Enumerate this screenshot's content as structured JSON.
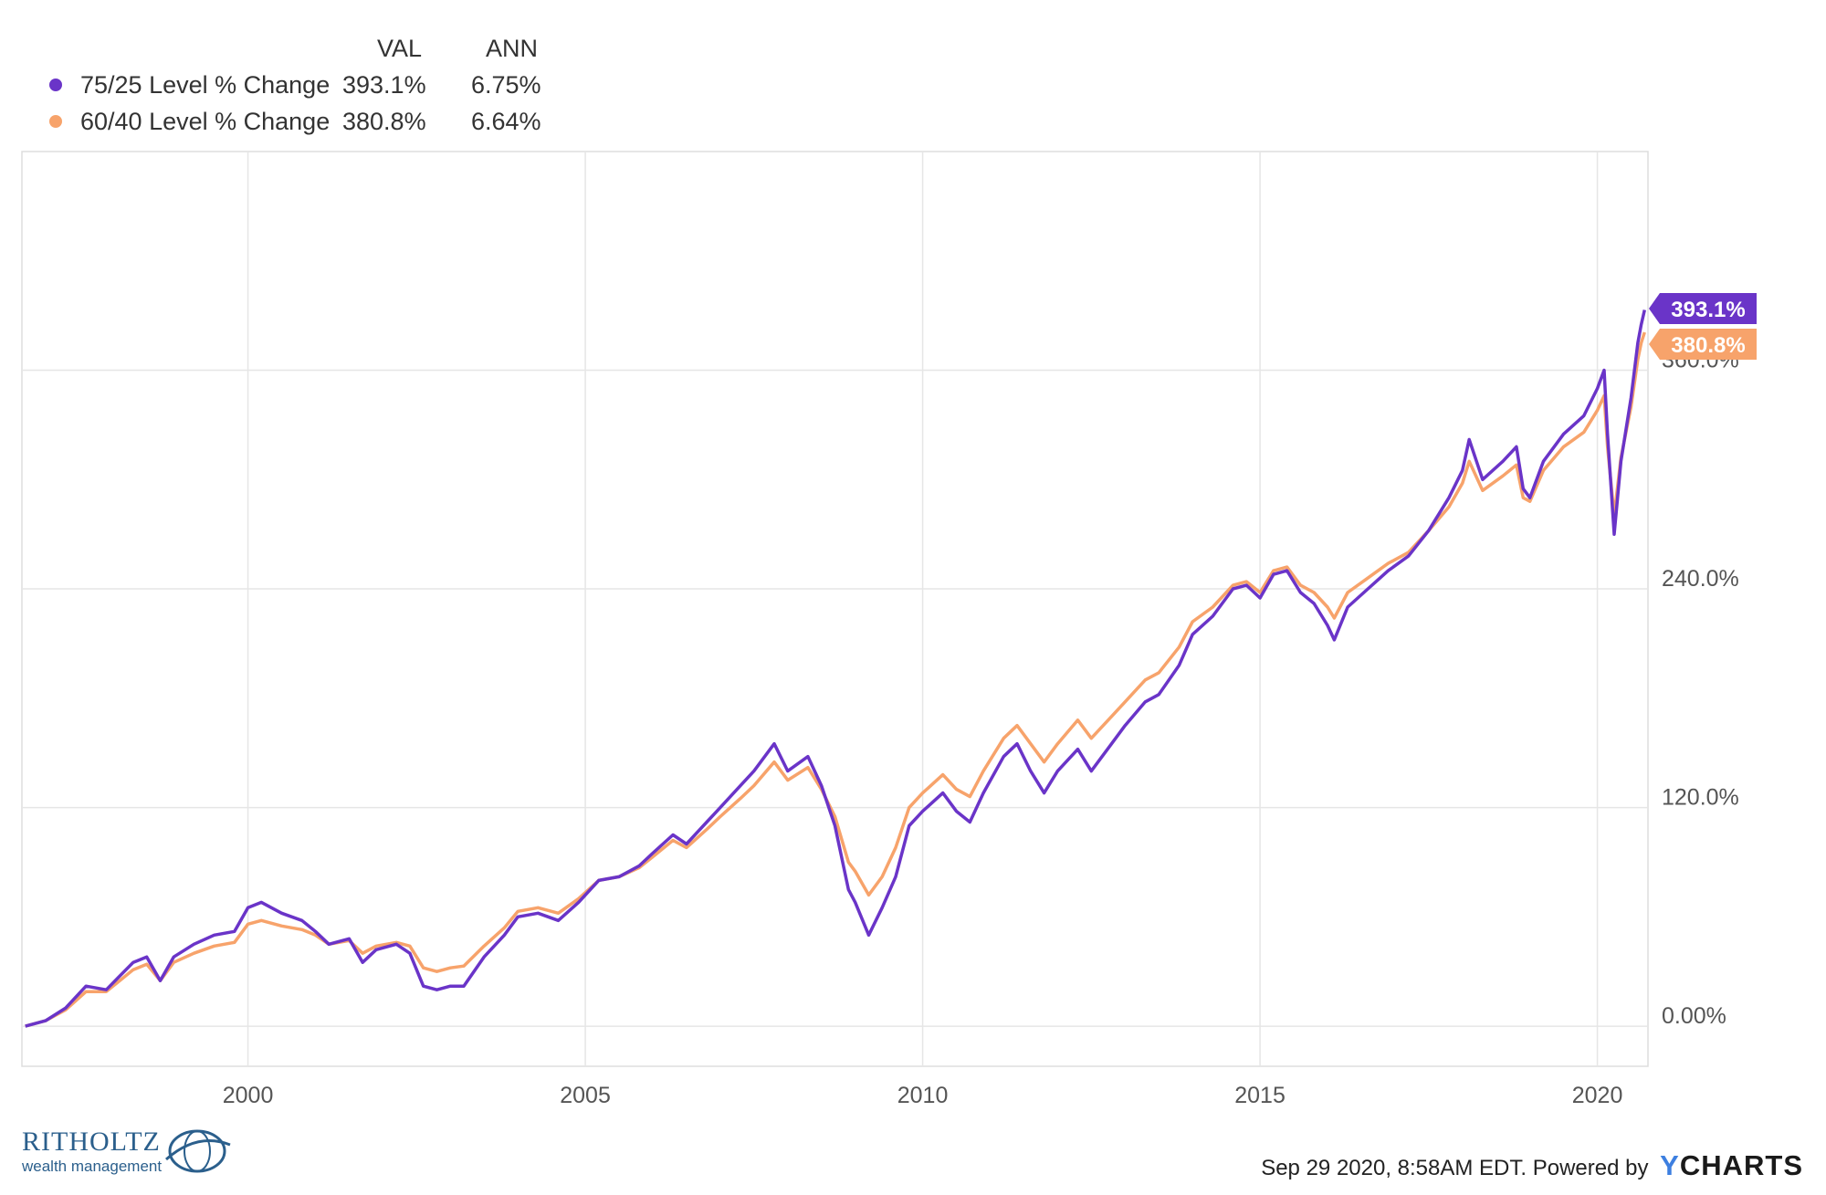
{
  "legend": {
    "col_val": "VAL",
    "col_ann": "ANN",
    "rows": [
      {
        "name": "75/25 Level % Change",
        "val": "393.1%",
        "ann": "6.75%"
      },
      {
        "name": "60/40 Level % Change",
        "val": "380.8%",
        "ann": "6.64%"
      }
    ]
  },
  "footer": {
    "timestamp": "Sep 29 2020, 8:58AM EDT. Powered by",
    "brand_y": "Y",
    "brand_rest": "CHARTS"
  },
  "logo": {
    "name": "RITHOLTZ",
    "sub": "wealth management"
  },
  "colors": {
    "series_75_25": "#6a34c8",
    "series_60_40": "#f7a36b",
    "grid": "#e6e6e6",
    "tick_text": "#555555"
  },
  "chart_data": {
    "type": "line",
    "title": "",
    "xlabel": "",
    "ylabel": "",
    "x_ticks": [
      "2000",
      "2005",
      "2010",
      "2015",
      "2020"
    ],
    "y_ticks": [
      "0.00%",
      "120.0%",
      "240.0%",
      "360.0%"
    ],
    "xlim": [
      1996.65,
      2020.75
    ],
    "ylim": [
      -22,
      480
    ],
    "grid": true,
    "legend_position": "top-left",
    "end_labels": [
      "393.1%",
      "380.8%"
    ],
    "series": [
      {
        "name": "75/25 Level % Change",
        "color": "#6a34c8",
        "points": [
          [
            1996.7,
            0
          ],
          [
            1997.0,
            3
          ],
          [
            1997.3,
            10
          ],
          [
            1997.6,
            22
          ],
          [
            1997.9,
            20
          ],
          [
            1998.3,
            35
          ],
          [
            1998.5,
            38
          ],
          [
            1998.7,
            25
          ],
          [
            1998.9,
            38
          ],
          [
            1999.2,
            45
          ],
          [
            1999.5,
            50
          ],
          [
            1999.8,
            52
          ],
          [
            2000.0,
            65
          ],
          [
            2000.2,
            68
          ],
          [
            2000.5,
            62
          ],
          [
            2000.8,
            58
          ],
          [
            2001.0,
            52
          ],
          [
            2001.2,
            45
          ],
          [
            2001.5,
            48
          ],
          [
            2001.7,
            35
          ],
          [
            2001.9,
            42
          ],
          [
            2002.2,
            45
          ],
          [
            2002.4,
            40
          ],
          [
            2002.6,
            22
          ],
          [
            2002.8,
            20
          ],
          [
            2003.0,
            22
          ],
          [
            2003.2,
            22
          ],
          [
            2003.5,
            38
          ],
          [
            2003.8,
            50
          ],
          [
            2004.0,
            60
          ],
          [
            2004.3,
            62
          ],
          [
            2004.6,
            58
          ],
          [
            2004.9,
            68
          ],
          [
            2005.2,
            80
          ],
          [
            2005.5,
            82
          ],
          [
            2005.8,
            88
          ],
          [
            2006.0,
            95
          ],
          [
            2006.3,
            105
          ],
          [
            2006.5,
            100
          ],
          [
            2006.8,
            112
          ],
          [
            2007.0,
            120
          ],
          [
            2007.3,
            132
          ],
          [
            2007.5,
            140
          ],
          [
            2007.8,
            155
          ],
          [
            2008.0,
            140
          ],
          [
            2008.3,
            148
          ],
          [
            2008.5,
            132
          ],
          [
            2008.7,
            110
          ],
          [
            2008.9,
            75
          ],
          [
            2009.0,
            68
          ],
          [
            2009.2,
            50
          ],
          [
            2009.4,
            65
          ],
          [
            2009.6,
            82
          ],
          [
            2009.8,
            110
          ],
          [
            2010.0,
            118
          ],
          [
            2010.3,
            128
          ],
          [
            2010.5,
            118
          ],
          [
            2010.7,
            112
          ],
          [
            2010.9,
            128
          ],
          [
            2011.2,
            148
          ],
          [
            2011.4,
            155
          ],
          [
            2011.6,
            140
          ],
          [
            2011.8,
            128
          ],
          [
            2012.0,
            140
          ],
          [
            2012.3,
            152
          ],
          [
            2012.5,
            140
          ],
          [
            2012.8,
            155
          ],
          [
            2013.0,
            165
          ],
          [
            2013.3,
            178
          ],
          [
            2013.5,
            182
          ],
          [
            2013.8,
            198
          ],
          [
            2014.0,
            215
          ],
          [
            2014.3,
            225
          ],
          [
            2014.6,
            240
          ],
          [
            2014.8,
            242
          ],
          [
            2015.0,
            235
          ],
          [
            2015.2,
            248
          ],
          [
            2015.4,
            250
          ],
          [
            2015.6,
            238
          ],
          [
            2015.8,
            232
          ],
          [
            2016.0,
            220
          ],
          [
            2016.1,
            212
          ],
          [
            2016.3,
            230
          ],
          [
            2016.6,
            240
          ],
          [
            2016.9,
            250
          ],
          [
            2017.2,
            258
          ],
          [
            2017.5,
            272
          ],
          [
            2017.8,
            290
          ],
          [
            2018.0,
            305
          ],
          [
            2018.1,
            322
          ],
          [
            2018.3,
            300
          ],
          [
            2018.6,
            310
          ],
          [
            2018.8,
            318
          ],
          [
            2018.9,
            295
          ],
          [
            2019.0,
            290
          ],
          [
            2019.2,
            310
          ],
          [
            2019.5,
            325
          ],
          [
            2019.8,
            335
          ],
          [
            2020.0,
            350
          ],
          [
            2020.1,
            360
          ],
          [
            2020.15,
            325
          ],
          [
            2020.25,
            270
          ],
          [
            2020.35,
            310
          ],
          [
            2020.5,
            345
          ],
          [
            2020.6,
            375
          ],
          [
            2020.65,
            385
          ],
          [
            2020.7,
            393.1
          ]
        ]
      },
      {
        "name": "60/40 Level % Change",
        "color": "#f7a36b",
        "points": [
          [
            1996.7,
            0
          ],
          [
            1997.0,
            3
          ],
          [
            1997.3,
            9
          ],
          [
            1997.6,
            19
          ],
          [
            1997.9,
            19
          ],
          [
            1998.3,
            31
          ],
          [
            1998.5,
            34
          ],
          [
            1998.7,
            25
          ],
          [
            1998.9,
            35
          ],
          [
            1999.2,
            40
          ],
          [
            1999.5,
            44
          ],
          [
            1999.8,
            46
          ],
          [
            2000.0,
            56
          ],
          [
            2000.2,
            58
          ],
          [
            2000.5,
            55
          ],
          [
            2000.8,
            53
          ],
          [
            2001.0,
            50
          ],
          [
            2001.2,
            45
          ],
          [
            2001.5,
            47
          ],
          [
            2001.7,
            40
          ],
          [
            2001.9,
            44
          ],
          [
            2002.2,
            46
          ],
          [
            2002.4,
            44
          ],
          [
            2002.6,
            32
          ],
          [
            2002.8,
            30
          ],
          [
            2003.0,
            32
          ],
          [
            2003.2,
            33
          ],
          [
            2003.5,
            44
          ],
          [
            2003.8,
            54
          ],
          [
            2004.0,
            63
          ],
          [
            2004.3,
            65
          ],
          [
            2004.6,
            62
          ],
          [
            2004.9,
            70
          ],
          [
            2005.2,
            80
          ],
          [
            2005.5,
            82
          ],
          [
            2005.8,
            87
          ],
          [
            2006.0,
            93
          ],
          [
            2006.3,
            102
          ],
          [
            2006.5,
            98
          ],
          [
            2006.8,
            108
          ],
          [
            2007.0,
            115
          ],
          [
            2007.3,
            125
          ],
          [
            2007.5,
            132
          ],
          [
            2007.8,
            145
          ],
          [
            2008.0,
            135
          ],
          [
            2008.3,
            142
          ],
          [
            2008.5,
            130
          ],
          [
            2008.7,
            115
          ],
          [
            2008.9,
            90
          ],
          [
            2009.0,
            85
          ],
          [
            2009.2,
            72
          ],
          [
            2009.4,
            82
          ],
          [
            2009.6,
            98
          ],
          [
            2009.8,
            120
          ],
          [
            2010.0,
            128
          ],
          [
            2010.3,
            138
          ],
          [
            2010.5,
            130
          ],
          [
            2010.7,
            126
          ],
          [
            2010.9,
            140
          ],
          [
            2011.2,
            158
          ],
          [
            2011.4,
            165
          ],
          [
            2011.6,
            155
          ],
          [
            2011.8,
            145
          ],
          [
            2012.0,
            155
          ],
          [
            2012.3,
            168
          ],
          [
            2012.5,
            158
          ],
          [
            2012.8,
            170
          ],
          [
            2013.0,
            178
          ],
          [
            2013.3,
            190
          ],
          [
            2013.5,
            194
          ],
          [
            2013.8,
            208
          ],
          [
            2014.0,
            222
          ],
          [
            2014.3,
            230
          ],
          [
            2014.6,
            242
          ],
          [
            2014.8,
            244
          ],
          [
            2015.0,
            238
          ],
          [
            2015.2,
            250
          ],
          [
            2015.4,
            252
          ],
          [
            2015.6,
            242
          ],
          [
            2015.8,
            238
          ],
          [
            2016.0,
            230
          ],
          [
            2016.1,
            224
          ],
          [
            2016.3,
            238
          ],
          [
            2016.6,
            246
          ],
          [
            2016.9,
            254
          ],
          [
            2017.2,
            260
          ],
          [
            2017.5,
            272
          ],
          [
            2017.8,
            285
          ],
          [
            2018.0,
            298
          ],
          [
            2018.1,
            310
          ],
          [
            2018.3,
            294
          ],
          [
            2018.6,
            302
          ],
          [
            2018.8,
            308
          ],
          [
            2018.9,
            290
          ],
          [
            2019.0,
            288
          ],
          [
            2019.2,
            305
          ],
          [
            2019.5,
            318
          ],
          [
            2019.8,
            326
          ],
          [
            2020.0,
            338
          ],
          [
            2020.1,
            346
          ],
          [
            2020.15,
            318
          ],
          [
            2020.25,
            280
          ],
          [
            2020.35,
            312
          ],
          [
            2020.5,
            340
          ],
          [
            2020.6,
            366
          ],
          [
            2020.65,
            375
          ],
          [
            2020.7,
            380.8
          ]
        ]
      }
    ]
  }
}
